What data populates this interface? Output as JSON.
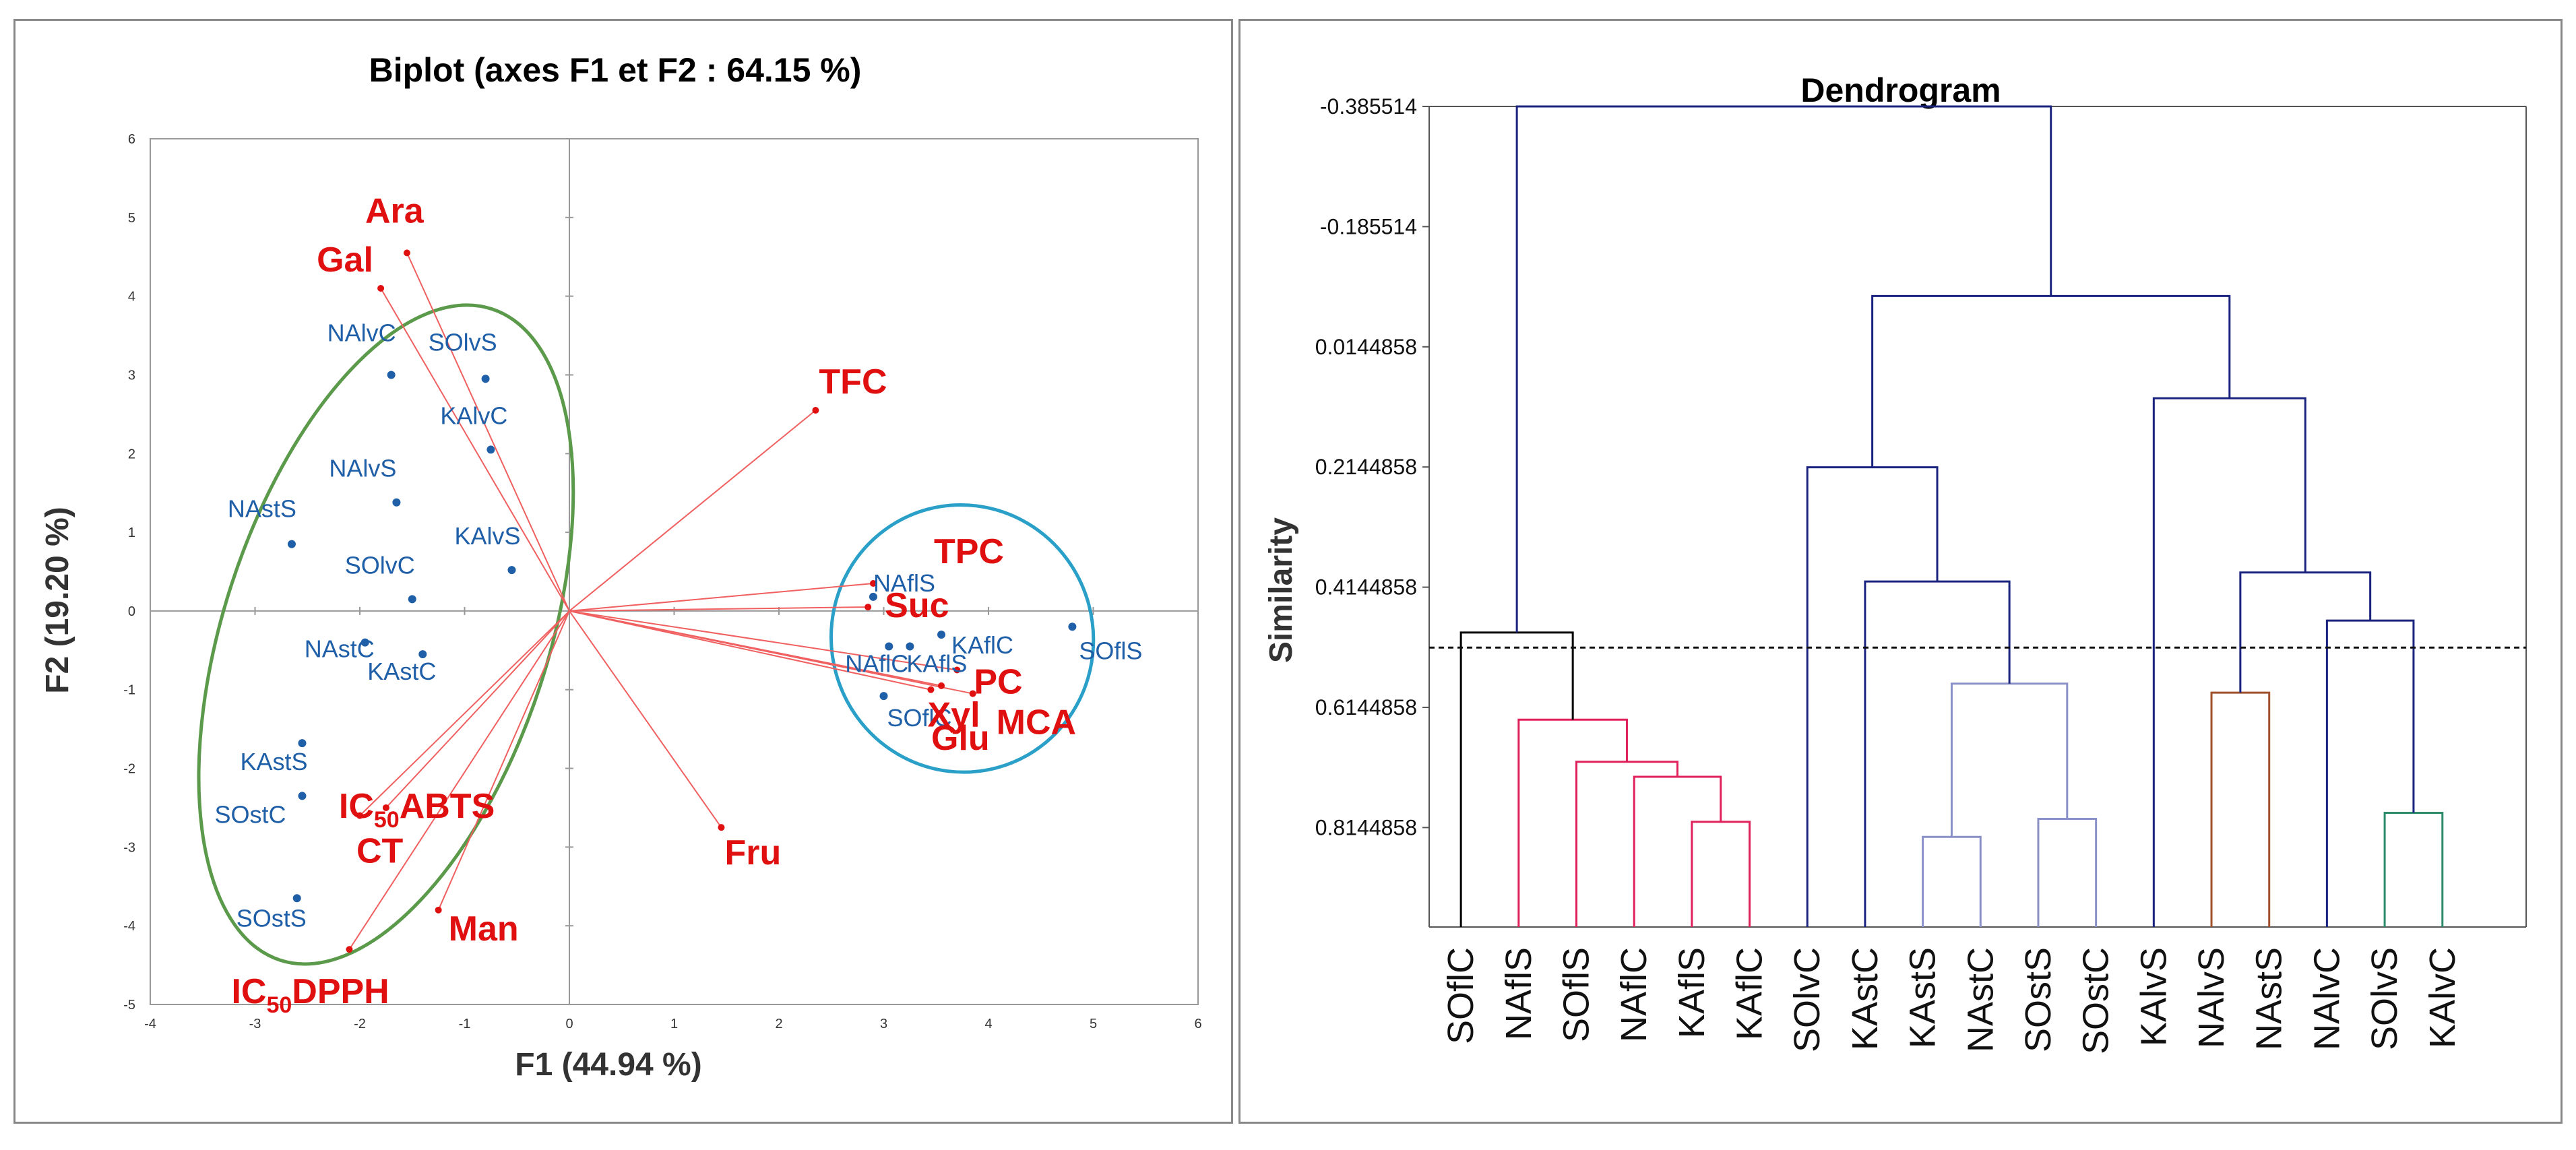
{
  "chart_data": [
    {
      "type": "scatter",
      "subtype": "biplot",
      "title": "Biplot (axes F1 et F2 : 64.15 %)",
      "xlabel": "F1 (44.94 %)",
      "ylabel": "F2 (19.20 %)",
      "xlim": [
        -4,
        6
      ],
      "ylim": [
        -5,
        6
      ],
      "xticks": [
        "-4",
        "-3",
        "-2",
        "-1",
        "0",
        "1",
        "2",
        "3",
        "4",
        "5",
        "6"
      ],
      "yticks": [
        "-5",
        "-4",
        "-3",
        "-2",
        "-1",
        "0",
        "1",
        "2",
        "3",
        "4",
        "5",
        "6"
      ],
      "observations": [
        {
          "label": "NAlvC",
          "x": -1.7,
          "y": 3.0
        },
        {
          "label": "SOlvS",
          "x": -0.8,
          "y": 2.95
        },
        {
          "label": "KAlvC",
          "x": -0.75,
          "y": 2.05
        },
        {
          "label": "NAlvS",
          "x": -1.65,
          "y": 1.38
        },
        {
          "label": "NAstS",
          "x": -2.65,
          "y": 0.85
        },
        {
          "label": "KAlvS",
          "x": -0.55,
          "y": 0.52
        },
        {
          "label": "SOlvC",
          "x": -1.5,
          "y": 0.15
        },
        {
          "label": "NAstC",
          "x": -1.95,
          "y": -0.4
        },
        {
          "label": "KAstC",
          "x": -1.4,
          "y": -0.55
        },
        {
          "label": "KAstS",
          "x": -2.55,
          "y": -1.68
        },
        {
          "label": "SOstC",
          "x": -2.55,
          "y": -2.35
        },
        {
          "label": "SOstS",
          "x": -2.6,
          "y": -3.65
        },
        {
          "label": "NAflS",
          "x": 2.9,
          "y": 0.18
        },
        {
          "label": "NAflC",
          "x": 3.05,
          "y": -0.45
        },
        {
          "label": "KAflS",
          "x": 3.25,
          "y": -0.45
        },
        {
          "label": "KAflC",
          "x": 3.55,
          "y": -0.3
        },
        {
          "label": "SOflC",
          "x": 3.0,
          "y": -1.08
        },
        {
          "label": "SOflS",
          "x": 4.8,
          "y": -0.2
        }
      ],
      "variables": [
        {
          "label": "Ara",
          "x": -1.55,
          "y": 4.55
        },
        {
          "label": "Gal",
          "x": -1.8,
          "y": 4.1
        },
        {
          "label": "TFC",
          "x": 2.35,
          "y": 2.55
        },
        {
          "label": "TPC",
          "x": 2.9,
          "y": 0.35
        },
        {
          "label": "Suc",
          "x": 2.85,
          "y": 0.05
        },
        {
          "label": "PC",
          "x": 3.7,
          "y": -0.75
        },
        {
          "label": "Xyl",
          "x": 3.45,
          "y": -1.0
        },
        {
          "label": "MCA",
          "x": 3.85,
          "y": -1.05
        },
        {
          "label": "Glu",
          "x": 3.55,
          "y": -0.95
        },
        {
          "label": "Fru",
          "x": 1.45,
          "y": -2.75
        },
        {
          "label": "ABTS",
          "x": -1.75,
          "y": -2.5
        },
        {
          "label": "CT",
          "x": -2.0,
          "y": -2.6
        },
        {
          "label": "Man",
          "x": -1.25,
          "y": -3.8
        },
        {
          "label": "IC50DPPH",
          "x": -2.1,
          "y": -4.3
        }
      ],
      "variable_labels": {
        "Ara": "Ara",
        "Gal": "Gal",
        "TFC": "TFC",
        "TPC": "TPC",
        "Suc": "Suc",
        "PC": "PC",
        "Xyl": "Xyl",
        "MCA": "MCA",
        "Glu": "Glu",
        "Fru": "Fru",
        "ABTS_prefix": "IC",
        "ABTS_sub": "50",
        "ABTS_suffix": "ABTS",
        "CT": "CT",
        "Man": "Man",
        "DPPH_prefix": "IC",
        "DPPH_sub": "50",
        "DPPH_suffix": "DPPH"
      },
      "groups": [
        {
          "name": "green-ellipse",
          "color": "#5a9a4a",
          "members": [
            "NAlvC",
            "SOlvS",
            "KAlvC",
            "NAlvS",
            "NAstS",
            "KAlvS",
            "SOlvC",
            "NAstC",
            "KAstC",
            "KAstS",
            "SOstC",
            "SOstS"
          ]
        },
        {
          "name": "blue-ellipse",
          "color": "#2aa0c8",
          "members": [
            "NAflS",
            "NAflC",
            "KAflS",
            "KAflC",
            "SOflC",
            "SOflS"
          ]
        }
      ],
      "colors": {
        "observation": "#1f5fa8",
        "variable": "#e01010",
        "vector": "#f06060"
      }
    },
    {
      "type": "dendrogram",
      "title": "Dendrogram",
      "ylabel": "Similarity",
      "ylim": [
        -0.385514,
        0.98
      ],
      "yticks": [
        -0.385514,
        -0.185514,
        0.0144858,
        0.2144858,
        0.4144858,
        0.6144858,
        0.8144858
      ],
      "ytick_labels": [
        "-0.385514",
        "-0.185514",
        "0.0144858",
        "0.2144858",
        "0.4144858",
        "0.6144858",
        "0.8144858"
      ],
      "cut_level": 0.515,
      "leaves": [
        "SOflC",
        "NAflS",
        "SOflS",
        "NAflC",
        "KAflS",
        "KAflC",
        "SOlvC",
        "KAstC",
        "KAstS",
        "NAstC",
        "SOstS",
        "SOstC",
        "KAlvS",
        "NAlvS",
        "NAstS",
        "NAlvC",
        "SOlvS",
        "KAlvC"
      ],
      "merges": [
        {
          "a": 4,
          "b": 5,
          "height": 0.805,
          "color": "#e0205a"
        },
        {
          "a": 3,
          "b": 18,
          "height": 0.73,
          "color": "#e0205a"
        },
        {
          "a": 2,
          "b": 19,
          "height": 0.705,
          "color": "#e0205a"
        },
        {
          "a": 1,
          "b": 20,
          "height": 0.635,
          "color": "#e0205a"
        },
        {
          "a": 0,
          "b": 21,
          "height": 0.49,
          "color": "#000000"
        },
        {
          "a": 8,
          "b": 9,
          "height": 0.83,
          "color": "#8a90c8"
        },
        {
          "a": 10,
          "b": 11,
          "height": 0.8,
          "color": "#8a90c8"
        },
        {
          "a": 23,
          "b": 24,
          "height": 0.575,
          "color": "#8a90c8"
        },
        {
          "a": 7,
          "b": 25,
          "height": 0.405,
          "color": "#1a237e"
        },
        {
          "a": 6,
          "b": 26,
          "height": 0.215,
          "color": "#1a237e"
        },
        {
          "a": 13,
          "b": 14,
          "height": 0.59,
          "color": "#a0522d"
        },
        {
          "a": 16,
          "b": 17,
          "height": 0.79,
          "color": "#2e8b6a"
        },
        {
          "a": 15,
          "b": 29,
          "height": 0.47,
          "color": "#1a237e"
        },
        {
          "a": 28,
          "b": 30,
          "height": 0.39,
          "color": "#1a237e"
        },
        {
          "a": 12,
          "b": 31,
          "height": 0.1,
          "color": "#1a237e"
        },
        {
          "a": 27,
          "b": 32,
          "height": -0.07,
          "color": "#1a237e"
        },
        {
          "a": 22,
          "b": 33,
          "height": -0.385514,
          "color": "#1a237e"
        }
      ]
    }
  ]
}
